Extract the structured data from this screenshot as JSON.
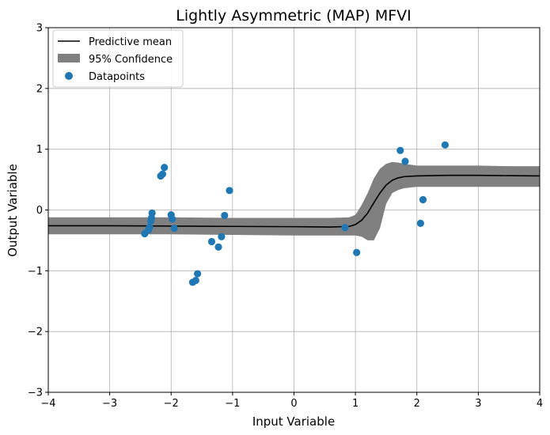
{
  "chart_data": {
    "type": "line",
    "title": "Lightly Asymmetric (MAP) MFVI",
    "xlabel": "Input Variable",
    "ylabel": "Output Variable",
    "xlim": [
      -4,
      4
    ],
    "ylim": [
      -3,
      3
    ],
    "xticks": [
      -4,
      -3,
      -2,
      -1,
      0,
      1,
      2,
      3,
      4
    ],
    "yticks": [
      -3,
      -2,
      -1,
      0,
      1,
      2,
      3
    ],
    "xtick_labels": [
      "−4",
      "−3",
      "−2",
      "−1",
      "0",
      "1",
      "2",
      "3",
      "4"
    ],
    "ytick_labels": [
      "−3",
      "−2",
      "−1",
      "0",
      "1",
      "2",
      "3"
    ],
    "grid": true,
    "legend_position": "top-left",
    "legend": [
      "Predictive mean",
      "95% Confidence",
      "Datapoints"
    ],
    "colors": {
      "mean": "#000000",
      "band": "#808080",
      "points": "#1f77b4",
      "grid": "#b0b0b0"
    },
    "series": [
      {
        "name": "Predictive mean",
        "kind": "line",
        "x": [
          -4.0,
          -3.0,
          -2.0,
          -1.0,
          0.0,
          0.6,
          0.9,
          1.0,
          1.1,
          1.2,
          1.3,
          1.4,
          1.5,
          1.6,
          1.7,
          1.8,
          2.0,
          2.5,
          3.0,
          3.5,
          4.0
        ],
        "y": [
          -0.26,
          -0.26,
          -0.265,
          -0.27,
          -0.275,
          -0.28,
          -0.27,
          -0.24,
          -0.17,
          -0.05,
          0.12,
          0.28,
          0.41,
          0.49,
          0.53,
          0.55,
          0.56,
          0.57,
          0.57,
          0.565,
          0.56
        ]
      },
      {
        "name": "95% Confidence",
        "kind": "band",
        "x": [
          -4.0,
          -3.0,
          -2.0,
          -1.0,
          0.0,
          0.6,
          0.9,
          1.0,
          1.1,
          1.2,
          1.3,
          1.4,
          1.5,
          1.6,
          1.7,
          1.8,
          2.0,
          2.5,
          3.0,
          3.5,
          4.0
        ],
        "upper": [
          -0.12,
          -0.12,
          -0.12,
          -0.13,
          -0.13,
          -0.13,
          -0.12,
          -0.08,
          0.08,
          0.28,
          0.52,
          0.68,
          0.76,
          0.79,
          0.78,
          0.76,
          0.73,
          0.73,
          0.73,
          0.72,
          0.72
        ],
        "lower": [
          -0.4,
          -0.4,
          -0.4,
          -0.41,
          -0.42,
          -0.42,
          -0.42,
          -0.42,
          -0.44,
          -0.5,
          -0.5,
          -0.3,
          0.1,
          0.28,
          0.33,
          0.36,
          0.38,
          0.38,
          0.38,
          0.38,
          0.38
        ]
      },
      {
        "name": "Datapoints",
        "kind": "scatter",
        "points": [
          [
            -2.43,
            -0.39
          ],
          [
            -2.37,
            -0.33
          ],
          [
            -2.35,
            -0.28
          ],
          [
            -2.33,
            -0.18
          ],
          [
            -2.32,
            -0.13
          ],
          [
            -2.31,
            -0.05
          ],
          [
            -2.17,
            0.56
          ],
          [
            -2.14,
            0.59
          ],
          [
            -2.11,
            0.7
          ],
          [
            -2.0,
            -0.08
          ],
          [
            -1.98,
            -0.15
          ],
          [
            -1.95,
            -0.3
          ],
          [
            -1.65,
            -1.19
          ],
          [
            -1.6,
            -1.16
          ],
          [
            -1.57,
            -1.05
          ],
          [
            -1.34,
            -0.52
          ],
          [
            -1.23,
            -0.61
          ],
          [
            -1.18,
            -0.44
          ],
          [
            -1.13,
            -0.09
          ],
          [
            -1.05,
            0.32
          ],
          [
            0.83,
            -0.29
          ],
          [
            1.02,
            -0.7
          ],
          [
            1.73,
            0.98
          ],
          [
            1.81,
            0.8
          ],
          [
            2.06,
            -0.22
          ],
          [
            2.1,
            0.17
          ],
          [
            2.46,
            1.07
          ]
        ]
      }
    ]
  }
}
